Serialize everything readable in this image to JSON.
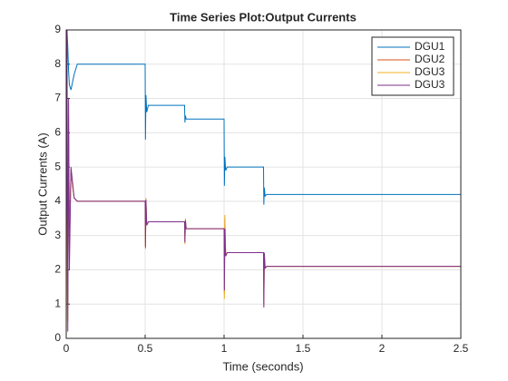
{
  "chart_data": {
    "type": "line",
    "title": "Time Series Plot:Output Currents",
    "x_label": "Time (seconds)",
    "y_label": "Output Currents (A)",
    "x": [
      0,
      0.005,
      0.01,
      0.015,
      0.02,
      0.03,
      0.05,
      0.07,
      0.5,
      0.502,
      0.505,
      0.51,
      0.52,
      0.75,
      0.752,
      0.755,
      0.76,
      0.77,
      1.0,
      1.002,
      1.005,
      1.01,
      1.02,
      1.25,
      1.252,
      1.255,
      1.26,
      1.27,
      2.5
    ],
    "series": [
      {
        "name": "DGU1",
        "color": "#0072bd",
        "values": [
          9,
          9,
          8.5,
          7.8,
          7.4,
          7.25,
          7.7,
          8.0,
          8.0,
          5.8,
          7.1,
          6.6,
          6.8,
          6.8,
          6.3,
          6.5,
          6.4,
          6.4,
          6.4,
          4.45,
          5.3,
          4.9,
          5.0,
          5.0,
          3.9,
          4.4,
          4.15,
          4.2,
          4.2
        ]
      },
      {
        "name": "DGU2",
        "color": "#d95319",
        "values": [
          0,
          8,
          1,
          6,
          3,
          4.8,
          4.1,
          4.0,
          4.0,
          2.7,
          4.0,
          3.3,
          3.4,
          3.4,
          2.8,
          3.4,
          3.2,
          3.2,
          3.2,
          1.3,
          3.5,
          2.4,
          2.5,
          2.5,
          1.0,
          2.4,
          2.05,
          2.1,
          2.1
        ]
      },
      {
        "name": "DGU3",
        "color": "#edb120",
        "values": [
          0,
          8.5,
          0.5,
          6.5,
          2.5,
          4.9,
          4.1,
          4.0,
          4.0,
          2.6,
          4.1,
          3.3,
          3.4,
          3.4,
          2.75,
          3.5,
          3.2,
          3.2,
          3.2,
          1.15,
          3.6,
          2.4,
          2.5,
          2.5,
          0.95,
          2.45,
          2.05,
          2.1,
          2.1
        ]
      },
      {
        "name": "DGU3",
        "color": "#7e2f8e",
        "values": [
          0,
          9,
          0.2,
          7,
          2,
          5,
          4.1,
          4.0,
          4.0,
          2.65,
          4.05,
          3.3,
          3.4,
          3.4,
          2.8,
          3.45,
          3.2,
          3.2,
          3.2,
          1.4,
          3.2,
          2.4,
          2.5,
          2.5,
          0.9,
          2.5,
          2.05,
          2.1,
          2.1
        ]
      }
    ],
    "xlim": [
      0,
      2.5
    ],
    "xticks": [
      0,
      0.5,
      1,
      1.5,
      2,
      2.5
    ],
    "ylim": [
      0,
      9
    ],
    "yticks": [
      0,
      1,
      2,
      3,
      4,
      5,
      6,
      7,
      8,
      9
    ],
    "grid": true,
    "legend": "northeast"
  }
}
